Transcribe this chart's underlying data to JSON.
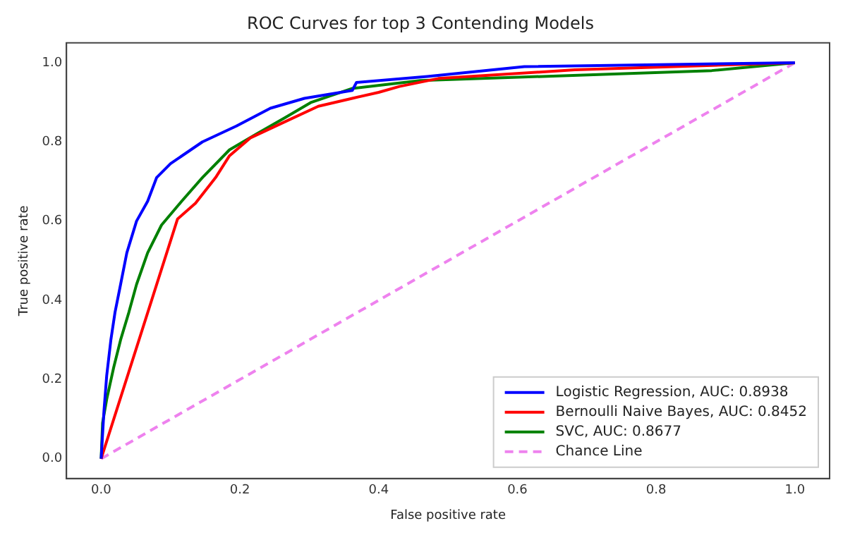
{
  "chart_data": {
    "type": "line",
    "title": "ROC Curves for top 3 Contending Models",
    "xlabel": "False positive rate",
    "ylabel": "True positive rate",
    "xlim": [
      -0.05,
      1.05
    ],
    "ylim": [
      -0.05,
      1.05
    ],
    "xticks": [
      {
        "value": 0,
        "label": "0.0"
      },
      0.2,
      0.4,
      0.6,
      0.8,
      {
        "value": 1,
        "label": "1.0"
      }
    ],
    "yticks": [
      {
        "value": 0,
        "label": "0.0"
      },
      0.2,
      0.4,
      0.6,
      0.8,
      {
        "value": 1,
        "label": "1.0"
      }
    ],
    "grid": false,
    "legend": "bottom right",
    "marker": "none",
    "series": [
      {
        "name": "Logistic Regression, AUC: 0.8938",
        "color": "#0000ff",
        "line_style": "solid",
        "x": [
          0,
          0.004,
          0.008,
          0.014,
          0.02,
          0.028,
          0.037,
          0.051,
          0.067,
          0.08,
          0.1,
          0.146,
          0.195,
          0.244,
          0.293,
          0.362,
          0.368,
          0.47,
          0.61,
          1.0
        ],
        "values": [
          0,
          0.12,
          0.21,
          0.3,
          0.37,
          0.44,
          0.52,
          0.6,
          0.65,
          0.71,
          0.745,
          0.8,
          0.84,
          0.885,
          0.91,
          0.93,
          0.95,
          0.965,
          0.99,
          1.0
        ]
      },
      {
        "name": "Bernoulli Naive Bayes, AUC: 0.8452",
        "color": "#ff0000",
        "line_style": "solid",
        "x": [
          0,
          0.11,
          0.136,
          0.165,
          0.185,
          0.215,
          0.264,
          0.313,
          0.362,
          0.4,
          0.43,
          0.486,
          0.683,
          1.0
        ],
        "values": [
          0,
          0.605,
          0.645,
          0.71,
          0.765,
          0.81,
          0.85,
          0.89,
          0.91,
          0.925,
          0.94,
          0.96,
          0.982,
          1.0
        ]
      },
      {
        "name": "SVC, AUC: 0.8677",
        "color": "#008000",
        "line_style": "solid",
        "x": [
          0,
          0.002,
          0.008,
          0.018,
          0.028,
          0.04,
          0.051,
          0.067,
          0.087,
          0.116,
          0.146,
          0.185,
          0.224,
          0.264,
          0.303,
          0.362,
          0.46,
          0.717,
          0.88,
          1.0
        ],
        "values": [
          0,
          0.09,
          0.15,
          0.23,
          0.3,
          0.37,
          0.44,
          0.52,
          0.59,
          0.65,
          0.71,
          0.78,
          0.82,
          0.86,
          0.9,
          0.935,
          0.955,
          0.97,
          0.98,
          1.0
        ]
      },
      {
        "name": "Chance Line",
        "color": "#ee82ee",
        "line_style": "dashed",
        "x": [
          0,
          1
        ],
        "values": [
          0,
          1
        ]
      }
    ]
  }
}
